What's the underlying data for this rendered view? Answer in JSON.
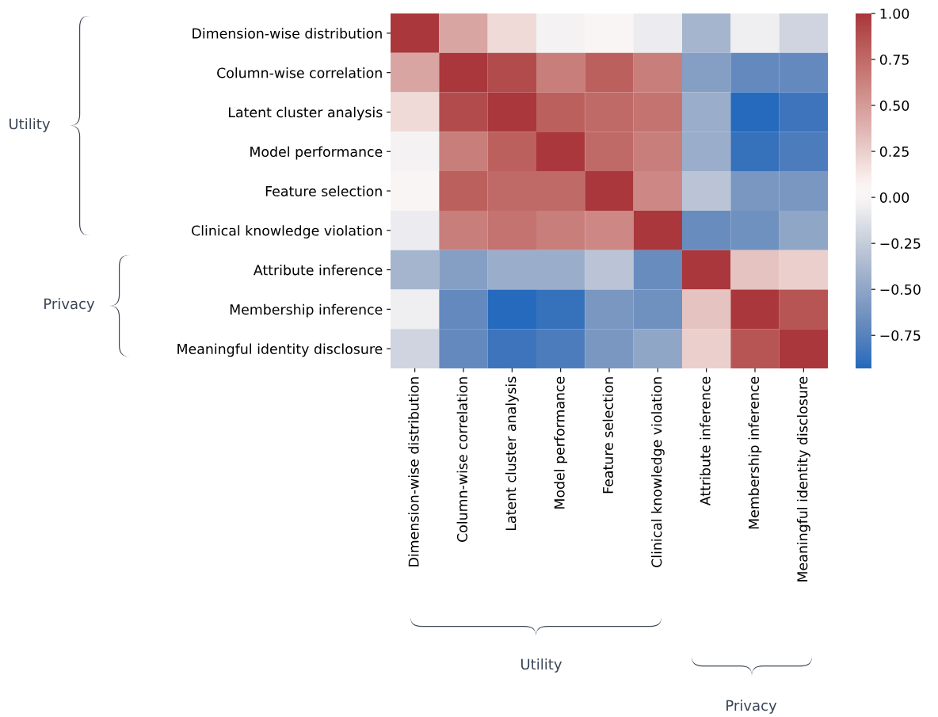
{
  "chart_data": {
    "type": "heatmap",
    "categories": [
      "Dimension-wise distribution",
      "Column-wise correlation",
      "Latent cluster analysis",
      "Model performance",
      "Feature selection",
      "Clinical knowledge violation",
      "Attribute inference",
      "Membership inference",
      "Meaningful identity disclosure"
    ],
    "y_categories": [
      "Dimension-wise distribution",
      "Column-wise correlation",
      "Latent cluster analysis",
      "Model performance",
      "Feature selection",
      "Clinical knowledge violation",
      "Attribute inference",
      "Membership inference",
      "Meaningful identity disclosure"
    ],
    "cells": [
      [
        1.0,
        0.45,
        0.2,
        -0.02,
        0.02,
        -0.07,
        -0.4,
        -0.05,
        -0.2
      ],
      [
        0.45,
        1.0,
        0.9,
        0.65,
        0.8,
        0.65,
        -0.55,
        -0.7,
        -0.7
      ],
      [
        0.2,
        0.9,
        1.0,
        0.8,
        0.75,
        0.7,
        -0.45,
        -0.92,
        -0.85
      ],
      [
        -0.02,
        0.65,
        0.8,
        1.0,
        0.75,
        0.65,
        -0.45,
        -0.87,
        -0.8
      ],
      [
        0.02,
        0.8,
        0.75,
        0.75,
        1.0,
        0.6,
        -0.3,
        -0.6,
        -0.6
      ],
      [
        -0.07,
        0.65,
        0.7,
        0.65,
        0.6,
        1.0,
        -0.68,
        -0.65,
        -0.5
      ],
      [
        -0.4,
        -0.55,
        -0.45,
        -0.45,
        -0.3,
        -0.68,
        1.0,
        0.3,
        0.25
      ],
      [
        -0.05,
        -0.7,
        -0.92,
        -0.87,
        -0.6,
        -0.65,
        0.3,
        1.0,
        0.85
      ],
      [
        -0.2,
        -0.7,
        -0.85,
        -0.8,
        -0.6,
        -0.5,
        0.25,
        0.85,
        1.0
      ]
    ],
    "clim": [
      -0.93,
      1.0
    ],
    "cticks": [
      {
        "value": -0.75,
        "label": "−0.75"
      },
      {
        "value": -0.5,
        "label": "−0.50"
      },
      {
        "value": -0.25,
        "label": "−0.25"
      },
      {
        "value": 0.0,
        "label": "0.00"
      },
      {
        "value": 0.25,
        "label": "0.25"
      },
      {
        "value": 0.5,
        "label": "0.50"
      },
      {
        "value": 0.75,
        "label": "0.75"
      },
      {
        "value": 1.0,
        "label": "1.00"
      }
    ],
    "annotations": [
      "Utility",
      "Privacy",
      "Utility",
      "Privacy"
    ]
  }
}
